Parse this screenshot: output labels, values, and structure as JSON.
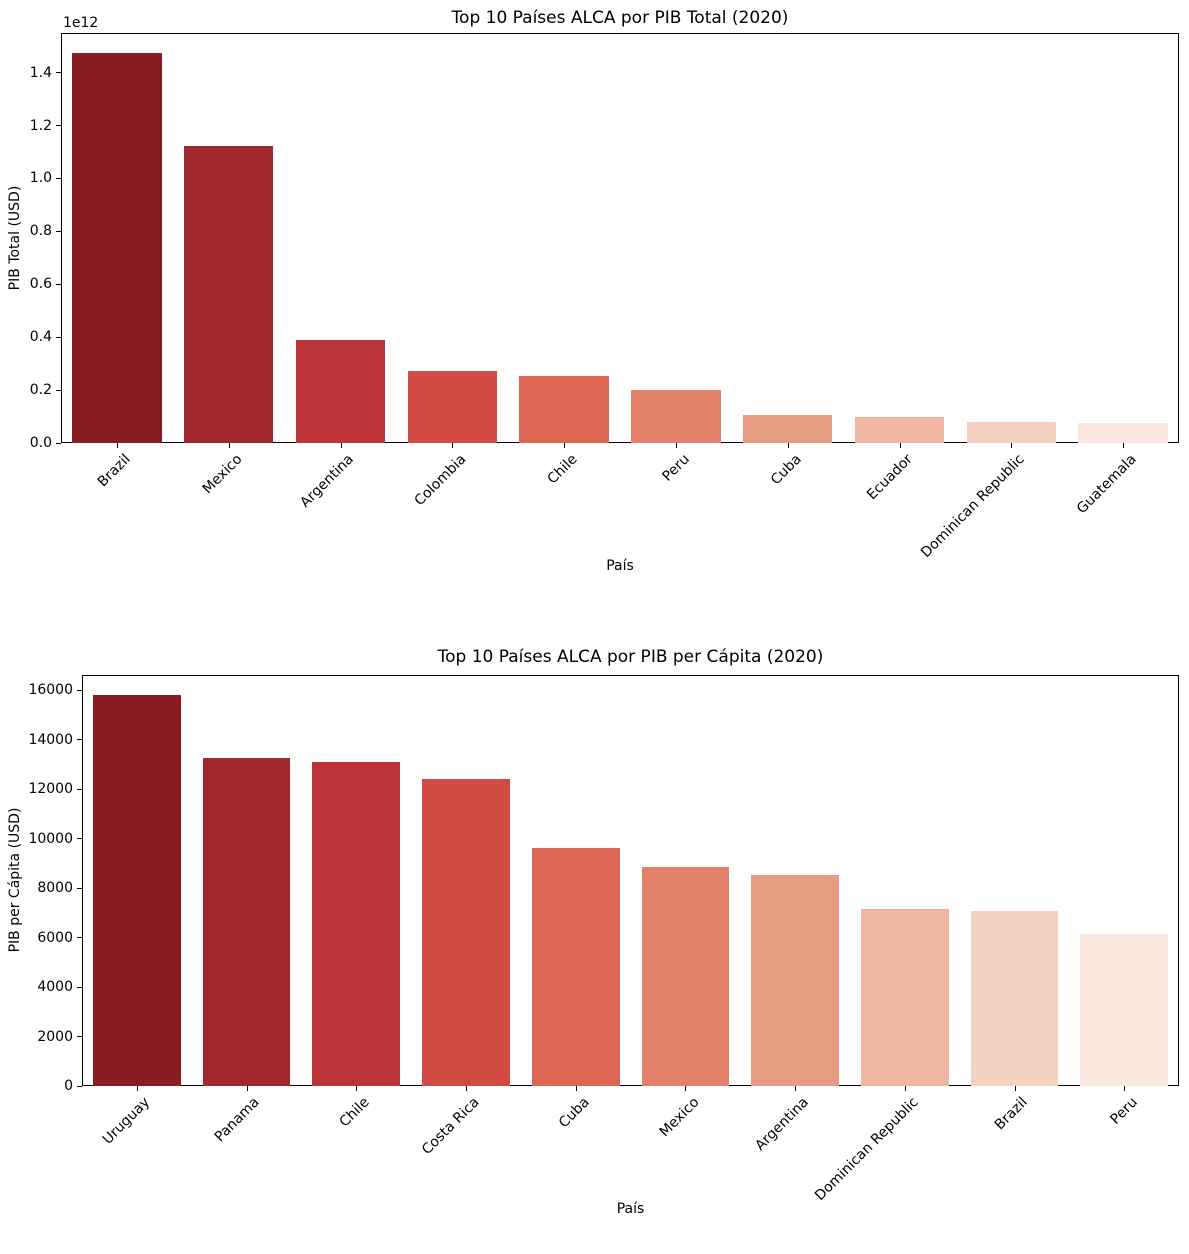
{
  "page": {
    "background": "#ffffff"
  },
  "palette": [
    "#871d22",
    "#a1282d",
    "#bb3436",
    "#d04b43",
    "#dc6553",
    "#e3816a",
    "#e99c84",
    "#efb7a1",
    "#f5d1c2",
    "#f9e7dd"
  ],
  "chart_data": [
    {
      "type": "bar",
      "title": "Top 10 Países ALCA por PIB Total (2020)",
      "xlabel": "País",
      "ylabel": "PIB Total (USD)",
      "offset_label": "1e12",
      "categories": [
        "Brazil",
        "Mexico",
        "Argentina",
        "Colombia",
        "Chile",
        "Peru",
        "Cuba",
        "Ecuador",
        "Dominican Republic",
        "Guatemala"
      ],
      "values": [
        1476000000000,
        1121000000000,
        389100000000,
        271300000000,
        252900000000,
        201700000000,
        107400000000,
        99300000000,
        78800000000,
        77600000000
      ],
      "ylim": [
        0,
        1549800000000
      ],
      "yticks": [
        0,
        200000000000,
        400000000000,
        600000000000,
        800000000000,
        1000000000000,
        1200000000000,
        1400000000000
      ],
      "ytick_labels": [
        "0.0",
        "0.2",
        "0.4",
        "0.6",
        "0.8",
        "1.0",
        "1.2",
        "1.4"
      ],
      "grid": false,
      "legend": null
    },
    {
      "type": "bar",
      "title": "Top 10 Países ALCA por PIB per Cápita (2020)",
      "xlabel": "País",
      "ylabel": "PIB per Cápita (USD)",
      "categories": [
        "Uruguay",
        "Panama",
        "Chile",
        "Costa Rica",
        "Cuba",
        "Mexico",
        "Argentina",
        "Dominican Republic",
        "Brazil",
        "Peru"
      ],
      "values": [
        15830,
        13270,
        13120,
        12430,
        9640,
        8850,
        8530,
        7150,
        7060,
        6130
      ],
      "ylim": [
        0,
        16622
      ],
      "yticks": [
        0,
        2000,
        4000,
        6000,
        8000,
        10000,
        12000,
        14000,
        16000
      ],
      "ytick_labels": [
        "0",
        "2000",
        "4000",
        "6000",
        "8000",
        "10000",
        "12000",
        "14000",
        "16000"
      ],
      "grid": false,
      "legend": null
    }
  ]
}
